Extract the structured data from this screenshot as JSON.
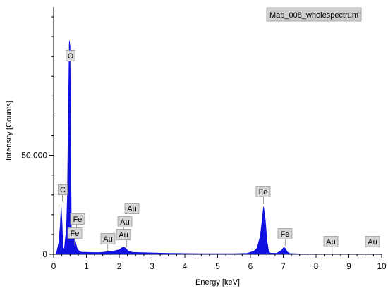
{
  "chart_data": {
    "type": "area",
    "legend": "Map_008_wholespectrum",
    "xlabel": "Energy [keV]",
    "ylabel": "Intensity [Counts]",
    "xlim": [
      0,
      10
    ],
    "ylim": [
      0,
      125000
    ],
    "x_ticks": [
      "0",
      "1",
      "2",
      "3",
      "4",
      "5",
      "6",
      "7",
      "8",
      "9",
      "10"
    ],
    "y_ticks": [
      {
        "value": 0,
        "label": "0"
      },
      {
        "value": 50000,
        "label": "50,000"
      }
    ],
    "color": "#1010e0",
    "series": [
      {
        "x": [
          0.0,
          0.08,
          0.12,
          0.16,
          0.2,
          0.23,
          0.26,
          0.28,
          0.3,
          0.33,
          0.36,
          0.39,
          0.42,
          0.45,
          0.48,
          0.5,
          0.52,
          0.54,
          0.56,
          0.58,
          0.61,
          0.64,
          0.67,
          0.7,
          0.73,
          0.76,
          0.8,
          0.85,
          0.9,
          1.0,
          1.2,
          1.4,
          1.6,
          1.8,
          2.0,
          2.08,
          2.14,
          2.2,
          2.28,
          2.4,
          2.6,
          3.0,
          3.5,
          4.0,
          4.5,
          5.0,
          5.5,
          5.9,
          6.1,
          6.2,
          6.3,
          6.35,
          6.4,
          6.45,
          6.5,
          6.55,
          6.6,
          6.8,
          6.95,
          7.02,
          7.06,
          7.12,
          7.2,
          7.5,
          8.0,
          9.0,
          10.0
        ],
        "y": [
          0,
          0,
          3000,
          6000,
          14000,
          24000,
          15000,
          5000,
          2500,
          3000,
          8000,
          12000,
          28000,
          70000,
          108000,
          105000,
          55000,
          12000,
          6000,
          9000,
          13000,
          8000,
          6000,
          4000,
          2500,
          2000,
          1500,
          1000,
          1000,
          1000,
          900,
          900,
          1200,
          1500,
          2300,
          3300,
          3600,
          3000,
          1500,
          1000,
          900,
          700,
          500,
          400,
          300,
          300,
          300,
          500,
          1500,
          3000,
          9000,
          16000,
          24000,
          18000,
          7000,
          2000,
          600,
          500,
          2000,
          3600,
          3000,
          1200,
          400,
          200,
          150,
          100,
          80
        ]
      }
    ],
    "peak_labels": [
      {
        "text": "O",
        "x": 0.52
      },
      {
        "text": "C",
        "x": 0.27
      },
      {
        "text": "Fe",
        "x": 0.7
      },
      {
        "text": "Fe",
        "x": 0.64
      },
      {
        "text": "Au",
        "x": 2.12
      },
      {
        "text": "Au",
        "x": 2.14
      },
      {
        "text": "Au",
        "x": 2.23
      },
      {
        "text": "Au",
        "x": 1.65
      },
      {
        "text": "Fe",
        "x": 6.4
      },
      {
        "text": "Fe",
        "x": 7.06
      },
      {
        "text": "Au",
        "x": 8.49
      },
      {
        "text": "Au",
        "x": 9.71
      }
    ]
  }
}
